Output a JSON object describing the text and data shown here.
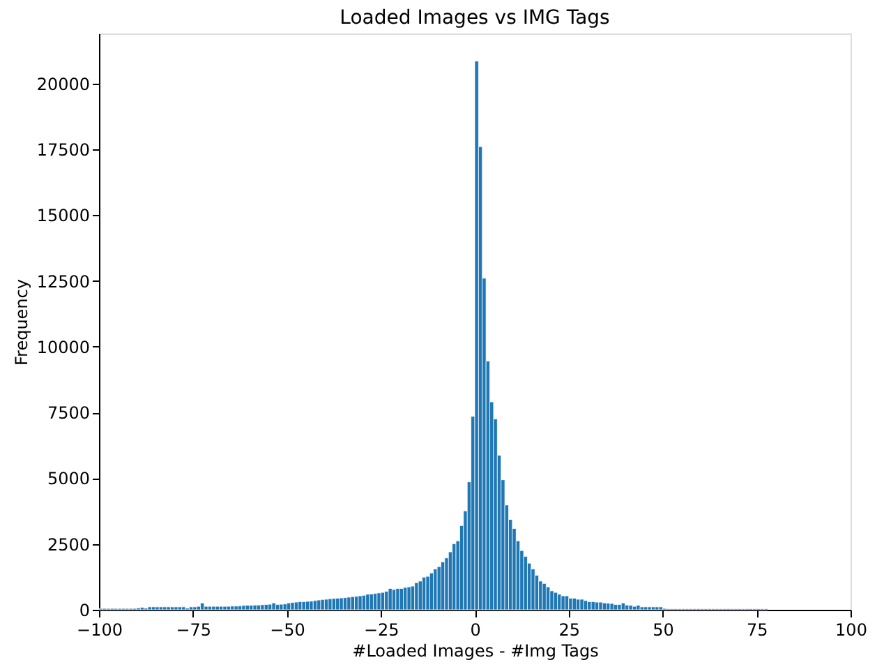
{
  "chart_data": {
    "type": "histogram",
    "title": "Loaded Images vs IMG Tags",
    "xlabel": "#Loaded Images - #Img Tags",
    "ylabel": "Frequency",
    "bins": [
      -100,
      -99,
      -98,
      -97,
      -96,
      -95,
      -94,
      -93,
      -92,
      -91,
      -90,
      -89,
      -88,
      -87,
      -86,
      -85,
      -84,
      -83,
      -82,
      -81,
      -80,
      -79,
      -78,
      -77,
      -76,
      -75,
      -74,
      -73,
      -72,
      -71,
      -70,
      -69,
      -68,
      -67,
      -66,
      -65,
      -64,
      -63,
      -62,
      -61,
      -60,
      -59,
      -58,
      -57,
      -56,
      -55,
      -54,
      -53,
      -52,
      -51,
      -50,
      -49,
      -48,
      -47,
      -46,
      -45,
      -44,
      -43,
      -42,
      -41,
      -40,
      -39,
      -38,
      -37,
      -36,
      -35,
      -34,
      -33,
      -32,
      -31,
      -30,
      -29,
      -28,
      -27,
      -26,
      -25,
      -24,
      -23,
      -22,
      -21,
      -20,
      -19,
      -18,
      -17,
      -16,
      -15,
      -14,
      -13,
      -12,
      -11,
      -10,
      -9,
      -8,
      -7,
      -6,
      -5,
      -4,
      -3,
      -2,
      -1,
      0,
      1,
      2,
      3,
      4,
      5,
      6,
      7,
      8,
      9,
      10,
      11,
      12,
      13,
      14,
      15,
      16,
      17,
      18,
      19,
      20,
      21,
      22,
      23,
      24,
      25,
      26,
      27,
      28,
      29,
      30,
      31,
      32,
      33,
      34,
      35,
      36,
      37,
      38,
      39,
      40,
      41,
      42,
      43,
      44,
      45,
      46,
      47,
      48,
      49,
      50,
      51,
      52,
      53,
      54,
      55,
      56,
      57,
      58,
      59,
      60,
      61,
      62,
      63,
      64,
      65,
      66,
      67,
      68,
      69,
      70,
      71,
      72,
      73,
      74,
      75,
      76,
      77,
      78,
      79,
      80,
      81,
      82,
      83,
      84,
      85,
      86,
      87,
      88,
      89,
      90,
      91,
      92,
      93,
      94,
      95,
      96,
      97,
      98,
      99,
      100
    ],
    "values": [
      50,
      50,
      50,
      50,
      50,
      50,
      50,
      50,
      50,
      50,
      70,
      90,
      60,
      110,
      110,
      110,
      110,
      110,
      110,
      110,
      110,
      110,
      110,
      60,
      110,
      110,
      130,
      260,
      130,
      130,
      130,
      130,
      130,
      130,
      130,
      140,
      140,
      150,
      165,
      170,
      170,
      180,
      180,
      190,
      200,
      210,
      260,
      200,
      210,
      220,
      260,
      280,
      290,
      310,
      310,
      320,
      330,
      350,
      370,
      390,
      400,
      420,
      430,
      440,
      450,
      460,
      480,
      500,
      510,
      530,
      550,
      590,
      600,
      620,
      640,
      660,
      700,
      810,
      770,
      810,
      810,
      850,
      870,
      900,
      1030,
      1090,
      1240,
      1270,
      1400,
      1550,
      1640,
      1820,
      1970,
      2200,
      2510,
      2620,
      3200,
      3760,
      4860,
      7350,
      20850,
      17600,
      12600,
      9450,
      7900,
      7250,
      5870,
      4940,
      3980,
      3430,
      3090,
      2620,
      2250,
      2030,
      1770,
      1550,
      1310,
      1090,
      1000,
      870,
      720,
      660,
      590,
      530,
      530,
      440,
      440,
      400,
      400,
      350,
      310,
      310,
      290,
      290,
      260,
      250,
      240,
      200,
      200,
      260,
      180,
      170,
      130,
      170,
      110,
      110,
      110,
      110,
      110,
      110,
      50,
      40,
      40,
      40,
      40,
      40,
      40,
      40,
      40,
      40,
      40,
      40,
      40,
      40,
      40,
      40,
      40,
      40,
      40,
      40,
      40,
      40,
      40,
      40,
      40,
      40,
      40,
      40,
      0,
      0,
      0,
      0,
      0,
      0,
      0,
      0,
      0,
      0,
      0,
      0,
      0,
      0,
      0,
      0,
      0,
      0,
      0,
      0,
      0,
      0
    ],
    "color": "#1f77b4",
    "xlim": [
      -100,
      100
    ],
    "ylim": [
      0,
      21900
    ],
    "xticks": [
      -100,
      -75,
      -50,
      -25,
      0,
      25,
      50,
      75,
      100
    ],
    "yticks": [
      0,
      2500,
      5000,
      7500,
      10000,
      12500,
      15000,
      17500,
      20000
    ],
    "grid": false
  }
}
